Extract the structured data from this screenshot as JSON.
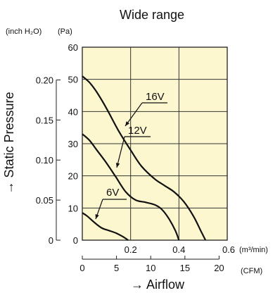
{
  "chart_data": {
    "type": "line",
    "title": "Wide range",
    "ylabel": "→ Static Pressure",
    "xlabel": "→ Airflow",
    "y_units_left": "(inch H₂O)",
    "y_units_right": "(Pa)",
    "x_units_top": "(m³/min)",
    "x_units_bottom": "(CFM)",
    "x_range_m3min": [
      0,
      0.6
    ],
    "y_range_pa": [
      0,
      60
    ],
    "x_ticks_m3min": [
      "0.2",
      "0.4",
      "0.6"
    ],
    "x_ticks_cfm": [
      "0",
      "5",
      "10",
      "15",
      "20"
    ],
    "y_ticks_pa": [
      "0",
      "10",
      "20",
      "30",
      "40",
      "50",
      "60"
    ],
    "y_ticks_inh2o": [
      "0",
      "0.05",
      "0.10",
      "0.15",
      "0.20"
    ],
    "grid": true,
    "plot_background": "#fdf7d0",
    "series": [
      {
        "name": "16V",
        "points": [
          [
            0.0,
            51.0
          ],
          [
            0.03,
            49.0
          ],
          [
            0.06,
            46.0
          ],
          [
            0.1,
            41.0
          ],
          [
            0.15,
            34.0
          ],
          [
            0.2,
            28.0
          ],
          [
            0.245,
            23.0
          ],
          [
            0.3,
            19.0
          ],
          [
            0.34,
            17.0
          ],
          [
            0.38,
            15.0
          ],
          [
            0.42,
            12.0
          ],
          [
            0.46,
            7.5
          ],
          [
            0.49,
            3.0
          ],
          [
            0.51,
            0.0
          ]
        ]
      },
      {
        "name": "12V",
        "points": [
          [
            0.0,
            33.0
          ],
          [
            0.03,
            31.0
          ],
          [
            0.06,
            28.0
          ],
          [
            0.1,
            24.0
          ],
          [
            0.14,
            19.5
          ],
          [
            0.18,
            15.0
          ],
          [
            0.22,
            12.5
          ],
          [
            0.26,
            11.8
          ],
          [
            0.3,
            11.0
          ],
          [
            0.33,
            9.5
          ],
          [
            0.36,
            6.5
          ],
          [
            0.385,
            3.0
          ],
          [
            0.4,
            0.0
          ]
        ]
      },
      {
        "name": "6V",
        "points": [
          [
            0.0,
            8.5
          ],
          [
            0.02,
            7.5
          ],
          [
            0.05,
            5.5
          ],
          [
            0.08,
            3.8
          ],
          [
            0.11,
            3.0
          ],
          [
            0.14,
            2.2
          ],
          [
            0.17,
            1.0
          ],
          [
            0.19,
            0.0
          ]
        ]
      }
    ]
  }
}
